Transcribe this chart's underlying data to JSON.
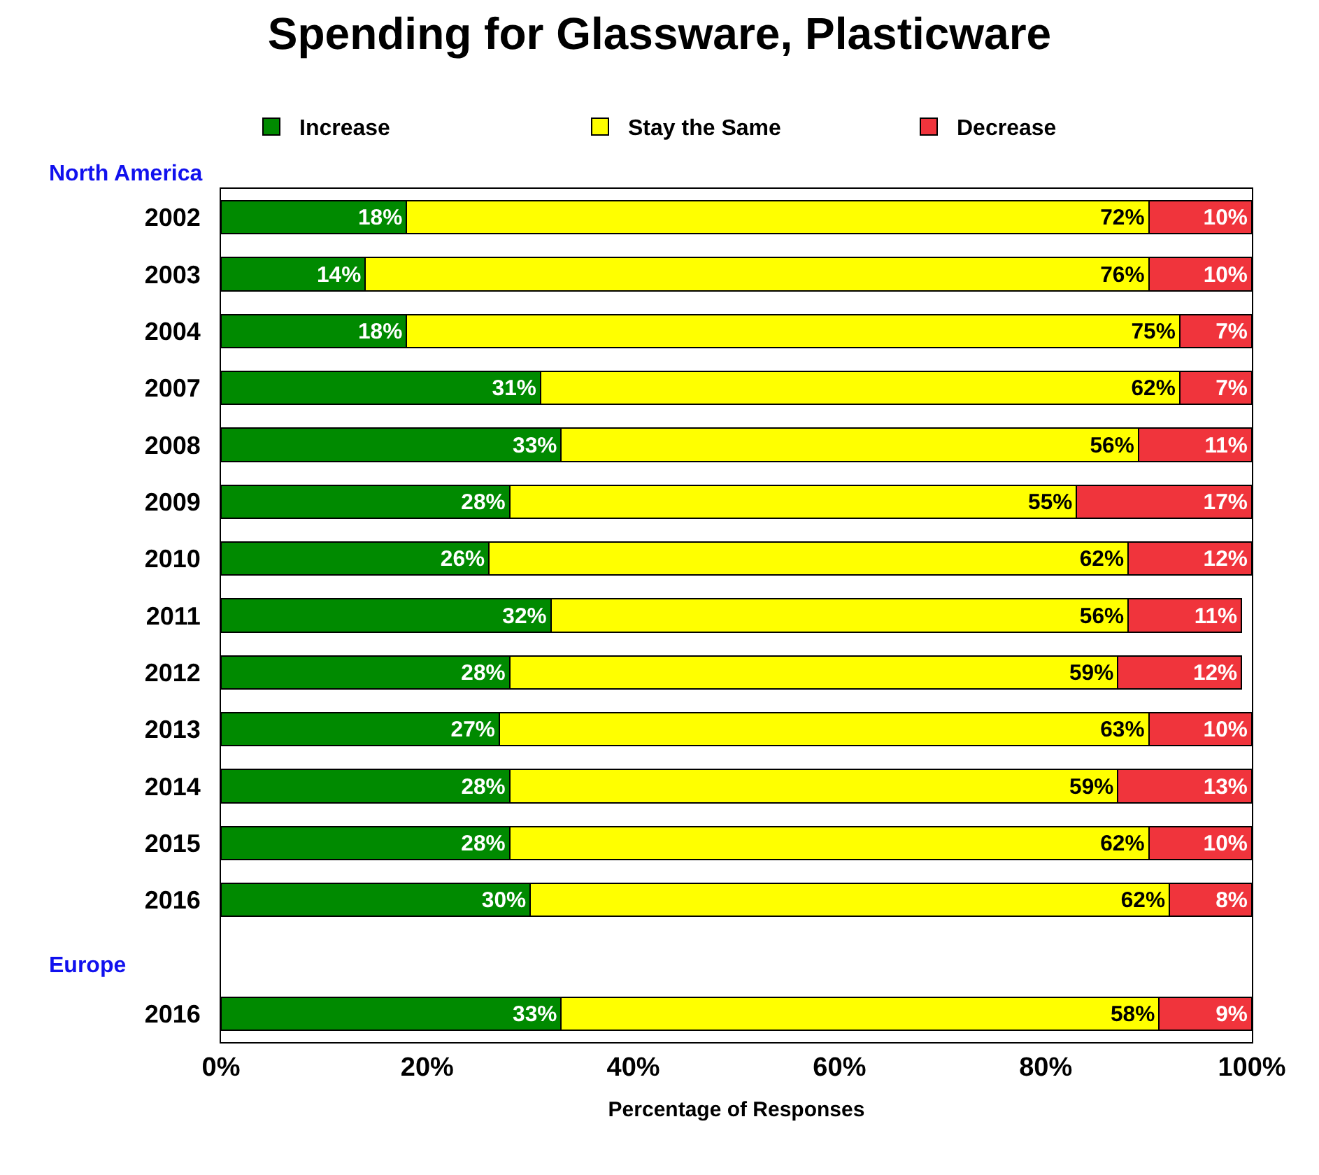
{
  "chart_data": {
    "type": "bar",
    "orientation": "horizontal",
    "stacked": true,
    "title": "Spending for Glassware, Plasticware",
    "xlabel": "Percentage of Responses",
    "categories": [
      "2002",
      "2003",
      "2004",
      "2007",
      "2008",
      "2009",
      "2010",
      "2011",
      "2012",
      "2013",
      "2014",
      "2015",
      "2016",
      null,
      "2016"
    ],
    "annotations": [
      "North America",
      "Europe"
    ],
    "series": [
      {
        "name": "Increase",
        "color": "#008a00",
        "values": [
          18,
          14,
          18,
          31,
          33,
          28,
          26,
          32,
          28,
          27,
          28,
          28,
          30,
          null,
          33
        ],
        "value_labels": [
          "18%",
          "14%",
          "18%",
          "31%",
          "33%",
          "28%",
          "26%",
          "32%",
          "28%",
          "27%",
          "28%",
          "28%",
          "30%",
          null,
          "33%"
        ]
      },
      {
        "name": "Stay the Same",
        "color": "#ffff00",
        "values": [
          72,
          76,
          75,
          62,
          56,
          55,
          62,
          56,
          59,
          63,
          59,
          62,
          62,
          null,
          58
        ],
        "value_labels": [
          "72%",
          "76%",
          "75%",
          "62%",
          "56%",
          "55%",
          "62%",
          "56%",
          "59%",
          "63%",
          "59%",
          "62%",
          "62%",
          null,
          "58%"
        ]
      },
      {
        "name": "Decrease",
        "color": "#f0343c",
        "values": [
          10,
          10,
          7,
          7,
          11,
          17,
          12,
          11,
          12,
          10,
          13,
          10,
          8,
          null,
          9
        ],
        "value_labels": [
          "10%",
          "10%",
          "7%",
          "7%",
          "11%",
          "17%",
          "12%",
          "11%",
          "12%",
          "10%",
          "13%",
          "10%",
          "8%",
          null,
          "9%"
        ]
      }
    ],
    "xlim": [
      0,
      100
    ],
    "xticks": [
      {
        "value": 0,
        "label": "0%"
      },
      {
        "value": 20,
        "label": "20%"
      },
      {
        "value": 40,
        "label": "40%"
      },
      {
        "value": 60,
        "label": "60%"
      },
      {
        "value": 80,
        "label": "80%"
      },
      {
        "value": 100,
        "label": "100%"
      }
    ],
    "legend": "top",
    "grid": false
  }
}
